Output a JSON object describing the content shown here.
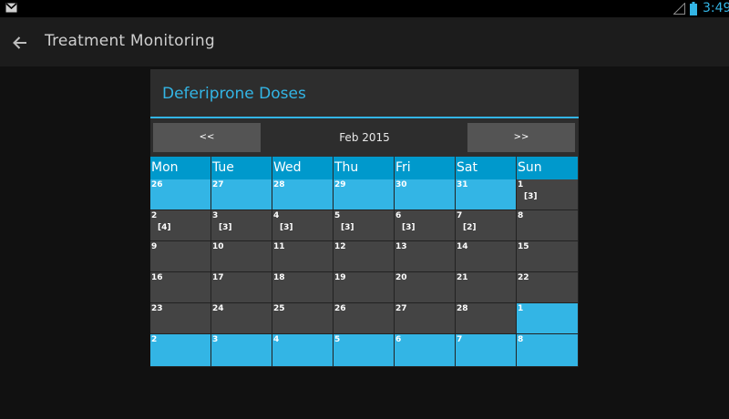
{
  "status_bar": {
    "time": "3:49",
    "accent": "#33b5e5"
  },
  "action_bar": {
    "title": "Treatment Monitoring"
  },
  "dialog": {
    "title": "Deferiprone Doses",
    "prev_label": "<<",
    "next_label": ">>",
    "month": "Feb 2015"
  },
  "calendar": {
    "day_headers": [
      "Mon",
      "Tue",
      "Wed",
      "Thu",
      "Fri",
      "Sat",
      "Sun"
    ],
    "weeks": [
      [
        {
          "d": "26",
          "other": true,
          "dose": ""
        },
        {
          "d": "27",
          "other": true,
          "dose": ""
        },
        {
          "d": "28",
          "other": true,
          "dose": ""
        },
        {
          "d": "29",
          "other": true,
          "dose": ""
        },
        {
          "d": "30",
          "other": true,
          "dose": ""
        },
        {
          "d": "31",
          "other": true,
          "dose": ""
        },
        {
          "d": "1",
          "other": false,
          "dose": "[3]"
        }
      ],
      [
        {
          "d": "2",
          "other": false,
          "dose": "[4]"
        },
        {
          "d": "3",
          "other": false,
          "dose": "[3]"
        },
        {
          "d": "4",
          "other": false,
          "dose": "[3]"
        },
        {
          "d": "5",
          "other": false,
          "dose": "[3]"
        },
        {
          "d": "6",
          "other": false,
          "dose": "[3]"
        },
        {
          "d": "7",
          "other": false,
          "dose": "[2]"
        },
        {
          "d": "8",
          "other": false,
          "dose": ""
        }
      ],
      [
        {
          "d": "9",
          "other": false,
          "dose": ""
        },
        {
          "d": "10",
          "other": false,
          "dose": ""
        },
        {
          "d": "11",
          "other": false,
          "dose": ""
        },
        {
          "d": "12",
          "other": false,
          "dose": ""
        },
        {
          "d": "13",
          "other": false,
          "dose": ""
        },
        {
          "d": "14",
          "other": false,
          "dose": ""
        },
        {
          "d": "15",
          "other": false,
          "dose": ""
        }
      ],
      [
        {
          "d": "16",
          "other": false,
          "dose": ""
        },
        {
          "d": "17",
          "other": false,
          "dose": ""
        },
        {
          "d": "18",
          "other": false,
          "dose": ""
        },
        {
          "d": "19",
          "other": false,
          "dose": ""
        },
        {
          "d": "20",
          "other": false,
          "dose": ""
        },
        {
          "d": "21",
          "other": false,
          "dose": ""
        },
        {
          "d": "22",
          "other": false,
          "dose": ""
        }
      ],
      [
        {
          "d": "23",
          "other": false,
          "dose": ""
        },
        {
          "d": "24",
          "other": false,
          "dose": ""
        },
        {
          "d": "25",
          "other": false,
          "dose": ""
        },
        {
          "d": "26",
          "other": false,
          "dose": ""
        },
        {
          "d": "27",
          "other": false,
          "dose": ""
        },
        {
          "d": "28",
          "other": false,
          "dose": ""
        },
        {
          "d": "1",
          "other": true,
          "dose": ""
        }
      ],
      [
        {
          "d": "2",
          "other": true,
          "dose": ""
        },
        {
          "d": "3",
          "other": true,
          "dose": ""
        },
        {
          "d": "4",
          "other": true,
          "dose": ""
        },
        {
          "d": "5",
          "other": true,
          "dose": ""
        },
        {
          "d": "6",
          "other": true,
          "dose": ""
        },
        {
          "d": "7",
          "other": true,
          "dose": ""
        },
        {
          "d": "8",
          "other": true,
          "dose": ""
        }
      ]
    ]
  }
}
